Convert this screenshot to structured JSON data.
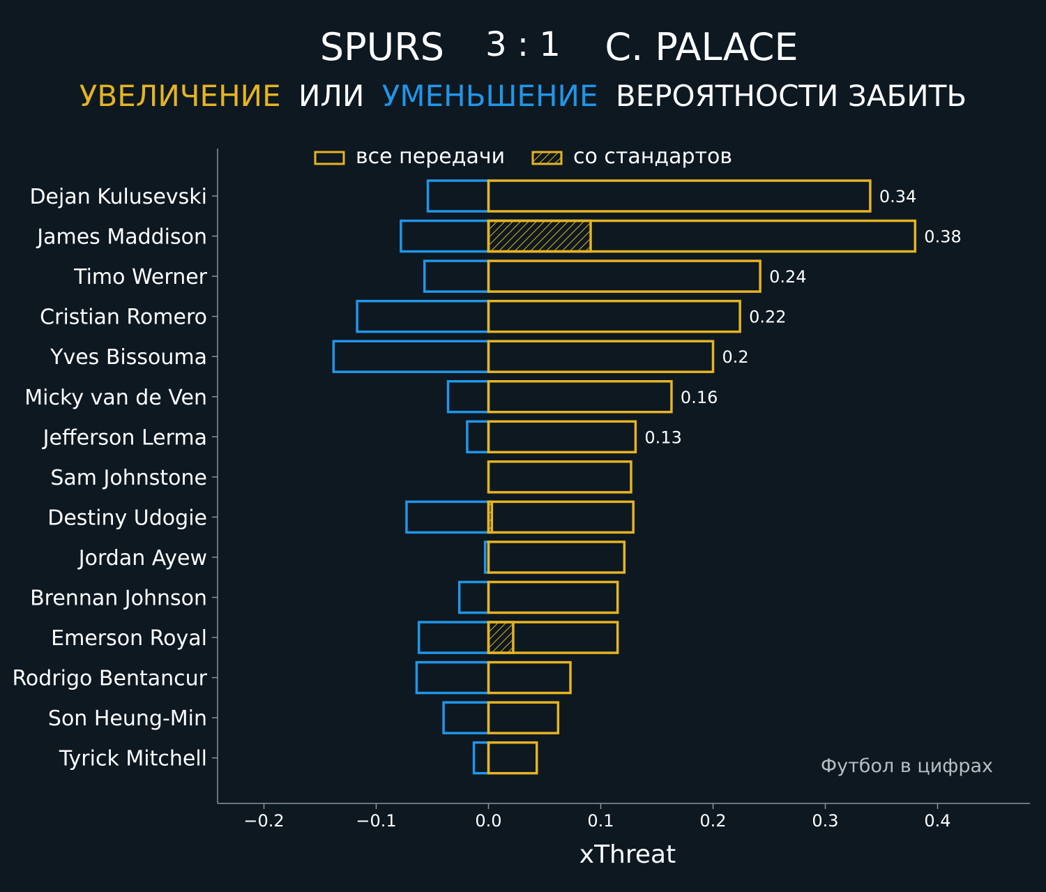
{
  "header": {
    "home_team": "SPURS",
    "score": "3 : 1",
    "away_team": "C. PALACE",
    "subtitle_increase": "УВЕЛИЧЕНИЕ",
    "subtitle_or": "ИЛИ",
    "subtitle_decrease": "УМЕНЬШЕНИЕ",
    "subtitle_rest": "ВЕРОЯТНОСТИ ЗАБИТЬ"
  },
  "watermark": "Футбол в цифрах",
  "colors": {
    "background": "#0d1821",
    "increase": "#e6b422",
    "decrease": "#2196e8",
    "text": "#ffffff",
    "axis": "#8a949c",
    "watermark": "#b8bec3"
  },
  "chart_data": {
    "type": "bar",
    "orientation": "horizontal",
    "title": "",
    "xlabel": "xThreat",
    "ylabel": "",
    "xlim": [
      -0.24,
      0.48
    ],
    "xticks": [
      -0.2,
      -0.1,
      0.0,
      0.1,
      0.2,
      0.3,
      0.4
    ],
    "xtick_labels": [
      "−0.2",
      "−0.1",
      "0.0",
      "0.1",
      "0.2",
      "0.3",
      "0.4"
    ],
    "grid": false,
    "legend_position": "top",
    "legend": [
      {
        "label": "все передачи",
        "style": "outline"
      },
      {
        "label": "со стандартов",
        "style": "hatched"
      }
    ],
    "categories": [
      "Dejan Kulusevski",
      "James Maddison",
      "Timo Werner",
      "Cristian Romero",
      "Yves Bissouma",
      "Micky van de Ven",
      "Jefferson Lerma",
      "Sam Johnstone",
      "Destiny Udogie",
      "Jordan Ayew",
      "Brennan Johnson",
      "Emerson Royal",
      "Rodrigo Bentancur",
      "Son Heung-Min",
      "Tyrick Mitchell"
    ],
    "series": [
      {
        "key": "increase",
        "values": [
          0.34,
          0.38,
          0.242,
          0.224,
          0.2,
          0.163,
          0.131,
          0.127,
          0.129,
          0.121,
          0.115,
          0.115,
          0.073,
          0.062,
          0.043
        ]
      },
      {
        "key": "decrease",
        "values": [
          -0.054,
          -0.078,
          -0.057,
          -0.117,
          -0.138,
          -0.036,
          -0.019,
          0.0,
          -0.073,
          -0.003,
          -0.026,
          -0.062,
          -0.064,
          -0.04,
          -0.013
        ]
      },
      {
        "key": "set_pieces",
        "values": [
          0,
          0.091,
          0,
          0,
          0,
          0,
          0,
          0,
          0.003,
          0,
          0,
          0.022,
          0,
          0,
          0
        ]
      }
    ],
    "value_labels": [
      "0.34",
      "0.38",
      "0.24",
      "0.22",
      "0.2",
      "0.16",
      "0.13",
      "",
      "",
      "",
      "",
      "",
      "",
      "",
      ""
    ]
  }
}
